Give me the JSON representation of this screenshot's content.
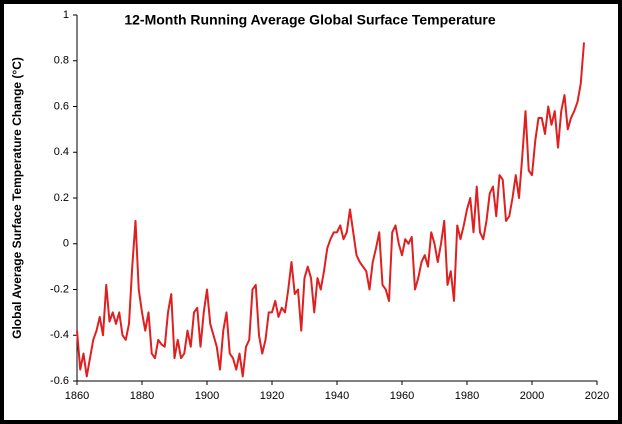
{
  "chart_data": {
    "type": "line",
    "title": "12-Month Running Average Global Surface Temperature",
    "y_label": "Global Average Surface Temperature Change (°C)",
    "x": [
      1860,
      1861,
      1862,
      1863,
      1864,
      1865,
      1866,
      1867,
      1868,
      1869,
      1870,
      1871,
      1872,
      1873,
      1874,
      1875,
      1876,
      1877,
      1878,
      1879,
      1880,
      1881,
      1882,
      1883,
      1884,
      1885,
      1886,
      1887,
      1888,
      1889,
      1890,
      1891,
      1892,
      1893,
      1894,
      1895,
      1896,
      1897,
      1898,
      1899,
      1900,
      1901,
      1902,
      1903,
      1904,
      1905,
      1906,
      1907,
      1908,
      1909,
      1910,
      1911,
      1912,
      1913,
      1914,
      1915,
      1916,
      1917,
      1918,
      1919,
      1920,
      1921,
      1922,
      1923,
      1924,
      1925,
      1926,
      1927,
      1928,
      1929,
      1930,
      1931,
      1932,
      1933,
      1934,
      1935,
      1936,
      1937,
      1938,
      1939,
      1940,
      1941,
      1942,
      1943,
      1944,
      1945,
      1946,
      1947,
      1948,
      1949,
      1950,
      1951,
      1952,
      1953,
      1954,
      1955,
      1956,
      1957,
      1958,
      1959,
      1960,
      1961,
      1962,
      1963,
      1964,
      1965,
      1966,
      1967,
      1968,
      1969,
      1970,
      1971,
      1972,
      1973,
      1974,
      1975,
      1976,
      1977,
      1978,
      1979,
      1980,
      1981,
      1982,
      1983,
      1984,
      1985,
      1986,
      1987,
      1988,
      1989,
      1990,
      1991,
      1992,
      1993,
      1994,
      1995,
      1996,
      1997,
      1998,
      1999,
      2000,
      2001,
      2002,
      2003,
      2004,
      2005,
      2006,
      2007,
      2008,
      2009,
      2010,
      2011,
      2012,
      2013,
      2014,
      2015,
      2016
    ],
    "series": [
      {
        "color": "#e02020",
        "values": [
          -0.38,
          -0.55,
          -0.48,
          -0.58,
          -0.5,
          -0.42,
          -0.38,
          -0.32,
          -0.4,
          -0.18,
          -0.34,
          -0.3,
          -0.35,
          -0.3,
          -0.4,
          -0.42,
          -0.35,
          -0.1,
          0.1,
          -0.2,
          -0.3,
          -0.38,
          -0.3,
          -0.48,
          -0.5,
          -0.42,
          -0.44,
          -0.45,
          -0.3,
          -0.22,
          -0.5,
          -0.42,
          -0.5,
          -0.48,
          -0.38,
          -0.45,
          -0.3,
          -0.28,
          -0.45,
          -0.3,
          -0.2,
          -0.35,
          -0.4,
          -0.45,
          -0.55,
          -0.38,
          -0.3,
          -0.48,
          -0.5,
          -0.55,
          -0.48,
          -0.58,
          -0.45,
          -0.42,
          -0.2,
          -0.18,
          -0.4,
          -0.48,
          -0.42,
          -0.3,
          -0.3,
          -0.25,
          -0.32,
          -0.28,
          -0.3,
          -0.2,
          -0.08,
          -0.22,
          -0.2,
          -0.38,
          -0.15,
          -0.1,
          -0.15,
          -0.3,
          -0.15,
          -0.2,
          -0.12,
          -0.02,
          0.02,
          0.05,
          0.05,
          0.08,
          0.02,
          0.05,
          0.15,
          0.05,
          -0.05,
          -0.08,
          -0.1,
          -0.12,
          -0.2,
          -0.08,
          -0.02,
          0.05,
          -0.18,
          -0.2,
          -0.25,
          0.05,
          0.08,
          0.0,
          -0.05,
          0.02,
          0.0,
          0.03,
          -0.2,
          -0.15,
          -0.08,
          -0.05,
          -0.1,
          0.05,
          0.0,
          -0.08,
          0.0,
          0.1,
          -0.18,
          -0.12,
          -0.25,
          0.08,
          0.02,
          0.08,
          0.15,
          0.2,
          0.05,
          0.25,
          0.05,
          0.02,
          0.1,
          0.22,
          0.25,
          0.12,
          0.3,
          0.28,
          0.1,
          0.12,
          0.2,
          0.3,
          0.2,
          0.38,
          0.58,
          0.32,
          0.3,
          0.45,
          0.55,
          0.55,
          0.48,
          0.6,
          0.52,
          0.58,
          0.42,
          0.58,
          0.65,
          0.5,
          0.55,
          0.58,
          0.62,
          0.7,
          0.88
        ]
      }
    ],
    "xlim": [
      1860,
      2020
    ],
    "xticks": [
      1860,
      1880,
      1900,
      1920,
      1940,
      1960,
      1980,
      2000,
      2020
    ],
    "ylim": [
      -0.6,
      1
    ],
    "yticks": [
      -0.6,
      -0.4,
      -0.2,
      0,
      0.2,
      0.4,
      0.6,
      0.8,
      1
    ],
    "grid": false
  }
}
